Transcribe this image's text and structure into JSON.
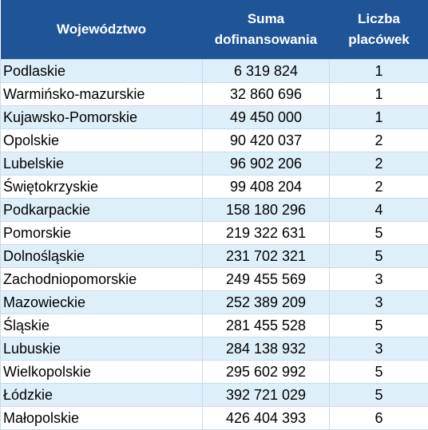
{
  "table": {
    "headers": {
      "region": "Województwo",
      "funding_line1": "Suma",
      "funding_line2": "dofinansowania",
      "count_line1": "Liczba",
      "count_line2": "placówek"
    },
    "rows": [
      {
        "region": "Podlaskie",
        "funding": "6 319 824",
        "count": "1"
      },
      {
        "region": "Warmińsko-mazurskie",
        "funding": "32 860 696",
        "count": "1"
      },
      {
        "region": "Kujawsko-Pomorskie",
        "funding": "49 450 000",
        "count": "1"
      },
      {
        "region": "Opolskie",
        "funding": "90 420 037",
        "count": "2"
      },
      {
        "region": "Lubelskie",
        "funding": "96 902 206",
        "count": "2"
      },
      {
        "region": "Świętokrzyskie",
        "funding": "99 408 204",
        "count": "2"
      },
      {
        "region": "Podkarpackie",
        "funding": "158 180 296",
        "count": "4"
      },
      {
        "region": "Pomorskie",
        "funding": "219 322 631",
        "count": "5"
      },
      {
        "region": "Dolnośląskie",
        "funding": "231 702 321",
        "count": "5"
      },
      {
        "region": "Zachodniopomorskie",
        "funding": "249 455 569",
        "count": "3"
      },
      {
        "region": "Mazowieckie",
        "funding": "252 389 209",
        "count": "3"
      },
      {
        "region": "Śląskie",
        "funding": "281 455 528",
        "count": "5"
      },
      {
        "region": "Lubuskie",
        "funding": "284 138 932",
        "count": "3"
      },
      {
        "region": "Wielkopolskie",
        "funding": "295 602 992",
        "count": "5"
      },
      {
        "region": "Łódzkie",
        "funding": "392 721 029",
        "count": "5"
      },
      {
        "region": "Małopolskie",
        "funding": "426 404 393",
        "count": "6"
      }
    ]
  },
  "colors": {
    "header_bg": "#1f5597",
    "header_text": "#ffffff",
    "stripe_bg": "#ddf0fa",
    "grid_line": "#c9dbe8"
  }
}
